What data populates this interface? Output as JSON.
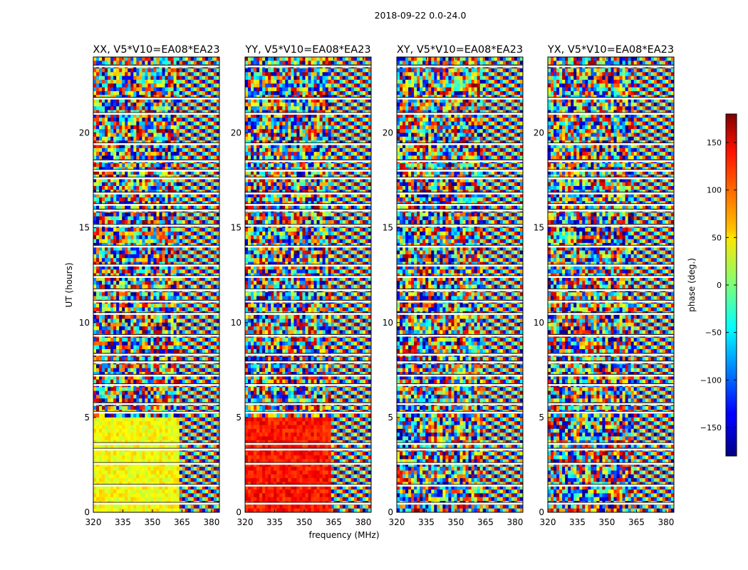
{
  "figure": {
    "suptitle": "2018-09-22 0.0-24.0"
  },
  "chart_data": {
    "type": "heatmap",
    "title": "2018-09-22 0.0-24.0",
    "xlabel": "frequency (MHz)",
    "ylabel": "UT (hours)",
    "xlim": [
      320,
      384
    ],
    "ylim": [
      0,
      24
    ],
    "xticks": [
      320,
      335,
      350,
      365,
      380
    ],
    "yticks": [
      0,
      5,
      10,
      15,
      20
    ],
    "panels": [
      {
        "title": "XX, V5*V10=EA08*EA23"
      },
      {
        "title": "YY, V5*V10=EA08*EA23"
      },
      {
        "title": "XY, V5*V10=EA08*EA23"
      },
      {
        "title": "YX, V5*V10=EA08*EA23"
      }
    ],
    "colorbar": {
      "label": "phase (deg.)",
      "vmin": -180,
      "vmax": 180,
      "ticks": [
        -150,
        -100,
        -50,
        0,
        50,
        100,
        150
      ],
      "tick_labels": [
        "−150",
        "−100",
        "−50",
        "0",
        "50",
        "100",
        "150"
      ],
      "colormap": "jet"
    }
  }
}
